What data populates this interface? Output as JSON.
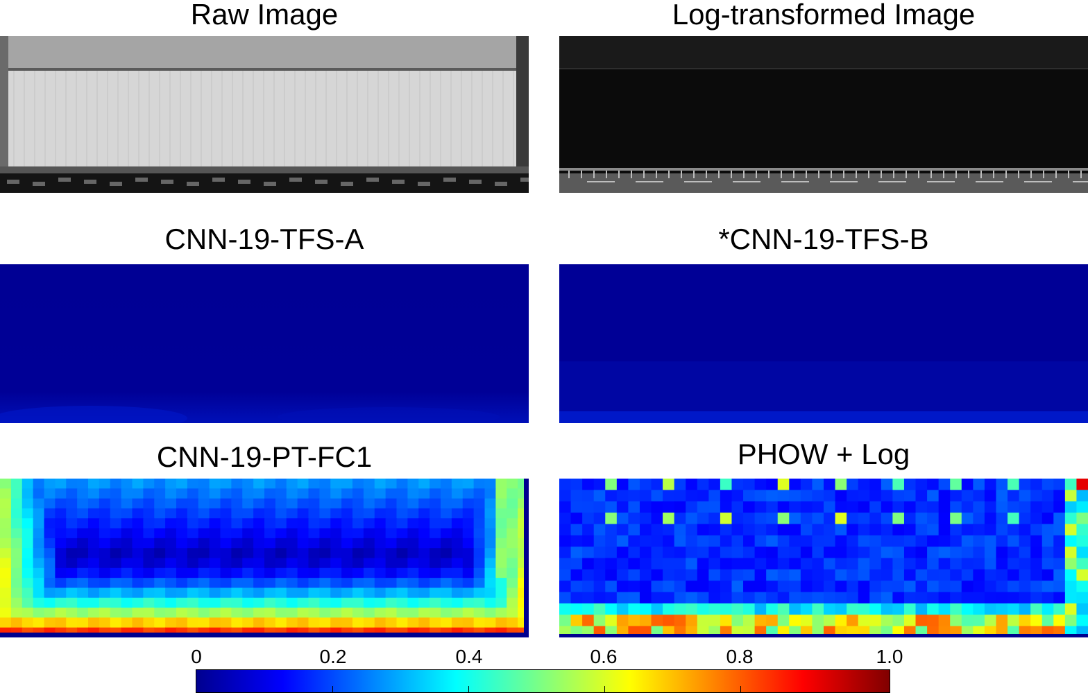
{
  "panels": {
    "raw": {
      "title": "Raw Image"
    },
    "log": {
      "title": "Log-transformed Image"
    },
    "tfs_a": {
      "title": "CNN-19-TFS-A"
    },
    "tfs_b": {
      "title": "*CNN-19-TFS-B"
    },
    "pt_fc1": {
      "title": "CNN-19-PT-FC1"
    },
    "phow": {
      "title": "PHOW + Log"
    }
  },
  "colorbar": {
    "ticks": [
      "0",
      "0.2",
      "0.4",
      "0.6",
      "0.8",
      "1.0"
    ],
    "colormap": [
      "#00008f",
      "#0000ff",
      "#0080ff",
      "#00ffff",
      "#80ff80",
      "#ffff00",
      "#ff8000",
      "#ff0000",
      "#800000"
    ]
  }
}
